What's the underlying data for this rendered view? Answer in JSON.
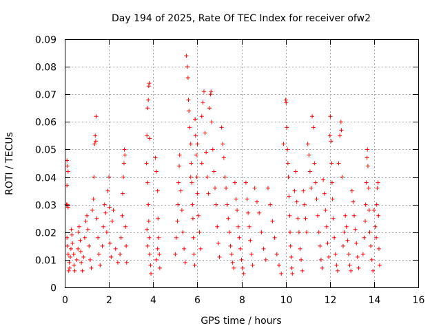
{
  "chart_data": {
    "type": "scatter",
    "title": "Day 194 of 2025, Rate Of TEC Index for receiver ofw2",
    "xlabel": "GPS time / hours",
    "ylabel": "ROTI / TECUs",
    "xlim": [
      0,
      16
    ],
    "ylim": [
      0,
      0.09
    ],
    "x_ticks": [
      "0",
      "2",
      "4",
      "6",
      "8",
      "10",
      "12",
      "14",
      "16"
    ],
    "y_ticks": [
      "0",
      "0.01",
      "0.02",
      "0.03",
      "0.04",
      "0.05",
      "0.06",
      "0.07",
      "0.08",
      "0.09"
    ],
    "grid": true,
    "marker": "+",
    "marker_color": "#ff0000",
    "series": [
      {
        "name": "ROTI",
        "points": [
          [
            0.1,
            0.046
          ],
          [
            0.12,
            0.044
          ],
          [
            0.15,
            0.042
          ],
          [
            0.1,
            0.037
          ],
          [
            0.12,
            0.03
          ],
          [
            0.15,
            0.029
          ],
          [
            0.08,
            0.03
          ],
          [
            0.1,
            0.018
          ],
          [
            0.12,
            0.015
          ],
          [
            0.15,
            0.012
          ],
          [
            0.2,
            0.009
          ],
          [
            0.22,
            0.007
          ],
          [
            0.18,
            0.006
          ],
          [
            0.25,
            0.011
          ],
          [
            0.28,
            0.014
          ],
          [
            0.3,
            0.021
          ],
          [
            0.32,
            0.019
          ],
          [
            0.35,
            0.016
          ],
          [
            0.4,
            0.012
          ],
          [
            0.42,
            0.008
          ],
          [
            0.45,
            0.006
          ],
          [
            0.55,
            0.01
          ],
          [
            0.6,
            0.014
          ],
          [
            0.62,
            0.02
          ],
          [
            0.65,
            0.022
          ],
          [
            0.7,
            0.017
          ],
          [
            0.72,
            0.013
          ],
          [
            0.75,
            0.009
          ],
          [
            0.8,
            0.006
          ],
          [
            0.85,
            0.011
          ],
          [
            0.9,
            0.018
          ],
          [
            0.95,
            0.024
          ],
          [
            1.0,
            0.026
          ],
          [
            1.05,
            0.021
          ],
          [
            1.1,
            0.015
          ],
          [
            1.15,
            0.01
          ],
          [
            1.2,
            0.007
          ],
          [
            1.25,
            0.028
          ],
          [
            1.3,
            0.032
          ],
          [
            1.32,
            0.04
          ],
          [
            1.35,
            0.052
          ],
          [
            1.38,
            0.055
          ],
          [
            1.4,
            0.053
          ],
          [
            1.42,
            0.062
          ],
          [
            1.45,
            0.025
          ],
          [
            1.5,
            0.018
          ],
          [
            1.55,
            0.012
          ],
          [
            1.6,
            0.008
          ],
          [
            1.7,
            0.015
          ],
          [
            1.75,
            0.022
          ],
          [
            1.8,
            0.03
          ],
          [
            1.85,
            0.027
          ],
          [
            1.9,
            0.02
          ],
          [
            1.95,
            0.035
          ],
          [
            2.0,
            0.04
          ],
          [
            2.02,
            0.029
          ],
          [
            2.05,
            0.016
          ],
          [
            2.1,
            0.011
          ],
          [
            2.15,
            0.024
          ],
          [
            2.2,
            0.028
          ],
          [
            2.3,
            0.014
          ],
          [
            2.4,
            0.009
          ],
          [
            2.5,
            0.012
          ],
          [
            2.55,
            0.018
          ],
          [
            2.6,
            0.026
          ],
          [
            2.62,
            0.034
          ],
          [
            2.65,
            0.04
          ],
          [
            2.68,
            0.045
          ],
          [
            2.7,
            0.05
          ],
          [
            2.72,
            0.048
          ],
          [
            2.75,
            0.022
          ],
          [
            2.78,
            0.015
          ],
          [
            2.8,
            0.009
          ],
          [
            3.7,
            0.045
          ],
          [
            3.72,
            0.055
          ],
          [
            3.75,
            0.065
          ],
          [
            3.78,
            0.068
          ],
          [
            3.8,
            0.073
          ],
          [
            3.82,
            0.074
          ],
          [
            3.85,
            0.054
          ],
          [
            3.75,
            0.038
          ],
          [
            3.78,
            0.03
          ],
          [
            3.8,
            0.024
          ],
          [
            3.82,
            0.018
          ],
          [
            3.85,
            0.012
          ],
          [
            3.88,
            0.008
          ],
          [
            3.9,
            0.005
          ],
          [
            3.72,
            0.021
          ],
          [
            3.75,
            0.015
          ],
          [
            4.1,
            0.047
          ],
          [
            4.15,
            0.042
          ],
          [
            4.2,
            0.035
          ],
          [
            4.22,
            0.025
          ],
          [
            4.25,
            0.018
          ],
          [
            4.28,
            0.012
          ],
          [
            4.3,
            0.007
          ],
          [
            4.15,
            0.01
          ],
          [
            4.2,
            0.014
          ],
          [
            5.0,
            0.012
          ],
          [
            5.05,
            0.018
          ],
          [
            5.1,
            0.024
          ],
          [
            5.12,
            0.03
          ],
          [
            5.15,
            0.038
          ],
          [
            5.18,
            0.044
          ],
          [
            5.2,
            0.048
          ],
          [
            5.25,
            0.035
          ],
          [
            5.3,
            0.028
          ],
          [
            5.35,
            0.02
          ],
          [
            5.4,
            0.014
          ],
          [
            5.45,
            0.009
          ],
          [
            5.5,
            0.084
          ],
          [
            5.55,
            0.08
          ],
          [
            5.58,
            0.076
          ],
          [
            5.6,
            0.068
          ],
          [
            5.62,
            0.064
          ],
          [
            5.65,
            0.058
          ],
          [
            5.7,
            0.052
          ],
          [
            5.72,
            0.045
          ],
          [
            5.75,
            0.038
          ],
          [
            5.78,
            0.03
          ],
          [
            5.8,
            0.025
          ],
          [
            5.82,
            0.018
          ],
          [
            5.85,
            0.012
          ],
          [
            5.88,
            0.008
          ],
          [
            5.9,
            0.061
          ],
          [
            5.92,
            0.055
          ],
          [
            5.95,
            0.048
          ],
          [
            5.98,
            0.04
          ],
          [
            6.0,
            0.034
          ],
          [
            6.05,
            0.026
          ],
          [
            6.1,
            0.02
          ],
          [
            6.15,
            0.014
          ],
          [
            6.2,
            0.062
          ],
          [
            6.25,
            0.067
          ],
          [
            6.3,
            0.071
          ],
          [
            6.35,
            0.056
          ],
          [
            6.4,
            0.049
          ],
          [
            6.45,
            0.04
          ],
          [
            6.5,
            0.034
          ],
          [
            6.55,
            0.065
          ],
          [
            6.6,
            0.07
          ],
          [
            6.62,
            0.071
          ],
          [
            6.65,
            0.06
          ],
          [
            6.7,
            0.05
          ],
          [
            6.75,
            0.042
          ],
          [
            6.8,
            0.036
          ],
          [
            6.85,
            0.03
          ],
          [
            6.9,
            0.022
          ],
          [
            6.95,
            0.016
          ],
          [
            7.0,
            0.011
          ],
          [
            6.0,
            0.052
          ],
          [
            5.7,
            0.04
          ],
          [
            6.2,
            0.045
          ],
          [
            7.1,
            0.058
          ],
          [
            7.15,
            0.052
          ],
          [
            7.2,
            0.047
          ],
          [
            7.25,
            0.04
          ],
          [
            7.3,
            0.036
          ],
          [
            7.35,
            0.03
          ],
          [
            7.4,
            0.025
          ],
          [
            7.45,
            0.02
          ],
          [
            7.5,
            0.015
          ],
          [
            7.55,
            0.012
          ],
          [
            7.6,
            0.009
          ],
          [
            7.65,
            0.007
          ],
          [
            7.7,
            0.038
          ],
          [
            7.75,
            0.032
          ],
          [
            7.8,
            0.028
          ],
          [
            7.85,
            0.022
          ],
          [
            7.9,
            0.018
          ],
          [
            7.95,
            0.014
          ],
          [
            8.0,
            0.01
          ],
          [
            8.05,
            0.007
          ],
          [
            8.1,
            0.005
          ],
          [
            8.2,
            0.038
          ],
          [
            8.25,
            0.032
          ],
          [
            8.3,
            0.027
          ],
          [
            8.35,
            0.022
          ],
          [
            8.4,
            0.017
          ],
          [
            8.45,
            0.012
          ],
          [
            8.5,
            0.008
          ],
          [
            8.6,
            0.036
          ],
          [
            8.7,
            0.031
          ],
          [
            8.8,
            0.027
          ],
          [
            8.9,
            0.02
          ],
          [
            9.0,
            0.014
          ],
          [
            9.1,
            0.01
          ],
          [
            9.2,
            0.036
          ],
          [
            9.3,
            0.03
          ],
          [
            9.4,
            0.024
          ],
          [
            9.5,
            0.018
          ],
          [
            9.6,
            0.012
          ],
          [
            9.7,
            0.008
          ],
          [
            9.8,
            0.005
          ],
          [
            9.9,
            0.052
          ],
          [
            10.0,
            0.068
          ],
          [
            10.02,
            0.067
          ],
          [
            10.05,
            0.058
          ],
          [
            10.08,
            0.05
          ],
          [
            10.1,
            0.045
          ],
          [
            10.12,
            0.04
          ],
          [
            10.15,
            0.033
          ],
          [
            10.18,
            0.026
          ],
          [
            10.2,
            0.02
          ],
          [
            10.22,
            0.015
          ],
          [
            10.25,
            0.011
          ],
          [
            10.28,
            0.007
          ],
          [
            10.3,
            0.005
          ],
          [
            10.4,
            0.035
          ],
          [
            10.45,
            0.042
          ],
          [
            10.5,
            0.031
          ],
          [
            10.55,
            0.025
          ],
          [
            10.6,
            0.02
          ],
          [
            10.65,
            0.014
          ],
          [
            10.7,
            0.01
          ],
          [
            10.75,
            0.006
          ],
          [
            10.8,
            0.035
          ],
          [
            10.85,
            0.03
          ],
          [
            10.9,
            0.025
          ],
          [
            10.95,
            0.02
          ],
          [
            11.0,
            0.052
          ],
          [
            11.05,
            0.048
          ],
          [
            11.1,
            0.042
          ],
          [
            11.15,
            0.036
          ],
          [
            11.2,
            0.062
          ],
          [
            11.25,
            0.058
          ],
          [
            11.3,
            0.045
          ],
          [
            11.35,
            0.038
          ],
          [
            11.4,
            0.032
          ],
          [
            11.45,
            0.026
          ],
          [
            11.5,
            0.02
          ],
          [
            11.55,
            0.015
          ],
          [
            11.6,
            0.01
          ],
          [
            11.65,
            0.007
          ],
          [
            11.7,
            0.039
          ],
          [
            11.75,
            0.034
          ],
          [
            11.8,
            0.028
          ],
          [
            11.85,
            0.022
          ],
          [
            11.9,
            0.016
          ],
          [
            11.95,
            0.011
          ],
          [
            12.0,
            0.055
          ],
          [
            12.02,
            0.062
          ],
          [
            12.05,
            0.053
          ],
          [
            12.08,
            0.045
          ],
          [
            12.1,
            0.038
          ],
          [
            12.12,
            0.032
          ],
          [
            12.15,
            0.025
          ],
          [
            12.2,
            0.018
          ],
          [
            12.25,
            0.012
          ],
          [
            12.3,
            0.008
          ],
          [
            12.35,
            0.006
          ],
          [
            12.4,
            0.045
          ],
          [
            12.45,
            0.055
          ],
          [
            12.5,
            0.06
          ],
          [
            12.52,
            0.057
          ],
          [
            12.55,
            0.04
          ],
          [
            12.6,
            0.015
          ],
          [
            12.65,
            0.02
          ],
          [
            12.7,
            0.026
          ],
          [
            12.75,
            0.022
          ],
          [
            12.8,
            0.017
          ],
          [
            12.85,
            0.012
          ],
          [
            12.9,
            0.008
          ],
          [
            12.95,
            0.006
          ],
          [
            13.0,
            0.035
          ],
          [
            13.05,
            0.031
          ],
          [
            13.1,
            0.026
          ],
          [
            13.15,
            0.021
          ],
          [
            13.2,
            0.016
          ],
          [
            13.25,
            0.011
          ],
          [
            13.3,
            0.007
          ],
          [
            13.5,
            0.012
          ],
          [
            13.55,
            0.018
          ],
          [
            13.6,
            0.024
          ],
          [
            13.62,
            0.03
          ],
          [
            13.65,
            0.038
          ],
          [
            13.68,
            0.047
          ],
          [
            13.7,
            0.05
          ],
          [
            13.72,
            0.044
          ],
          [
            13.75,
            0.036
          ],
          [
            13.78,
            0.028
          ],
          [
            13.8,
            0.02
          ],
          [
            13.85,
            0.015
          ],
          [
            13.9,
            0.01
          ],
          [
            13.95,
            0.006
          ],
          [
            14.0,
            0.028
          ],
          [
            14.05,
            0.022
          ],
          [
            14.1,
            0.018
          ],
          [
            14.12,
            0.03
          ],
          [
            14.15,
            0.036
          ],
          [
            14.18,
            0.038
          ],
          [
            14.2,
            0.026
          ],
          [
            14.22,
            0.014
          ],
          [
            14.25,
            0.008
          ]
        ]
      }
    ]
  }
}
